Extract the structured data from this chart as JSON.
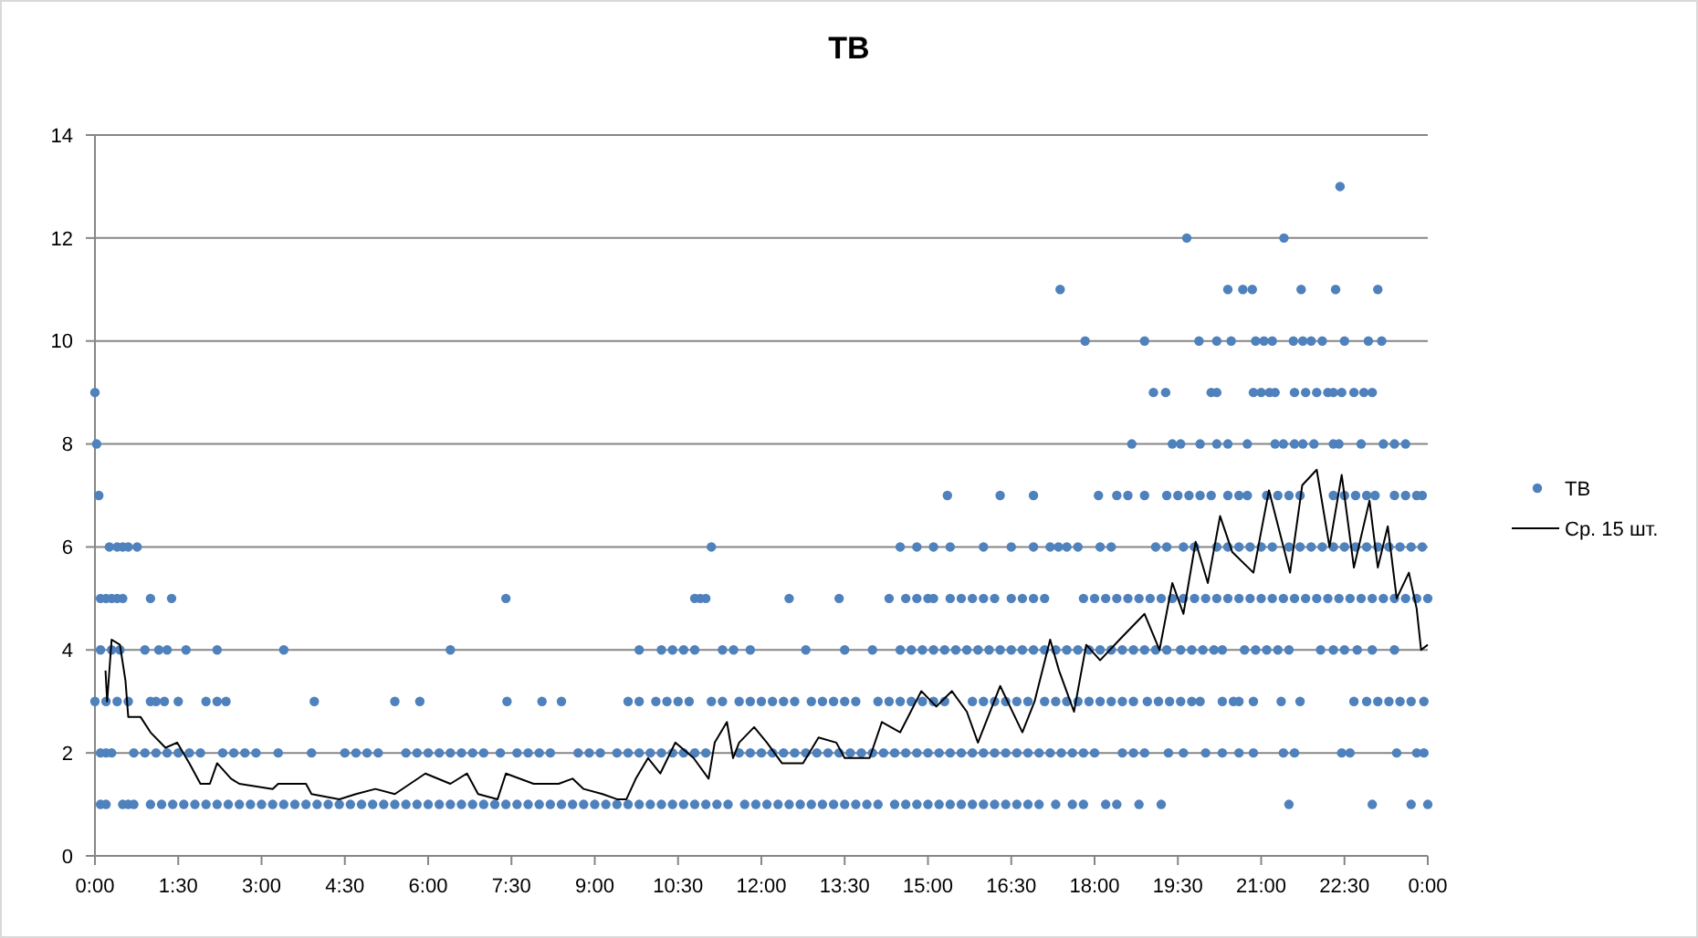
{
  "chart_data": {
    "type": "scatter",
    "title": "ТВ",
    "xlim": [
      0,
      24
    ],
    "ylim": [
      0,
      14
    ],
    "xticks": [
      {
        "value": 0,
        "label": "0:00"
      },
      {
        "value": 1.5,
        "label": "1:30"
      },
      {
        "value": 3,
        "label": "3:00"
      },
      {
        "value": 4.5,
        "label": "4:30"
      },
      {
        "value": 6,
        "label": "6:00"
      },
      {
        "value": 7.5,
        "label": "7:30"
      },
      {
        "value": 9,
        "label": "9:00"
      },
      {
        "value": 10.5,
        "label": "10:30"
      },
      {
        "value": 12,
        "label": "12:00"
      },
      {
        "value": 13.5,
        "label": "13:30"
      },
      {
        "value": 15,
        "label": "15:00"
      },
      {
        "value": 16.5,
        "label": "16:30"
      },
      {
        "value": 18,
        "label": "18:00"
      },
      {
        "value": 19.5,
        "label": "19:30"
      },
      {
        "value": 21,
        "label": "21:00"
      },
      {
        "value": 22.5,
        "label": "22:30"
      },
      {
        "value": 24,
        "label": "0:00"
      }
    ],
    "yticks": [
      0,
      2,
      4,
      6,
      8,
      10,
      12,
      14
    ],
    "grid": "y",
    "legend": "right",
    "marker": "circle",
    "series": [
      {
        "name": "ТВ",
        "color": "#4f81bd",
        "x": [
          0.1,
          0.2,
          0.5,
          0.6,
          0.7,
          1.0,
          1.2,
          1.4,
          1.6,
          1.8,
          2.0,
          2.2,
          2.4,
          2.6,
          2.8,
          3.0,
          3.2,
          3.4,
          3.6,
          3.8,
          4.0,
          4.2,
          4.4,
          4.6,
          4.8,
          5.0,
          5.2,
          5.4,
          5.6,
          5.8,
          6.0,
          6.2,
          6.4,
          6.6,
          6.8,
          7.0,
          7.2,
          7.4,
          7.6,
          7.8,
          8.0,
          8.2,
          8.4,
          8.6,
          8.8,
          9.0,
          9.2,
          9.4,
          9.6,
          9.8,
          10.0,
          10.2,
          10.4,
          10.6,
          10.8,
          11.0,
          11.2,
          11.4,
          11.7,
          11.9,
          12.1,
          12.3,
          12.5,
          12.7,
          12.9,
          13.1,
          13.3,
          13.5,
          13.7,
          13.9,
          14.1,
          14.4,
          14.6,
          14.8,
          15.0,
          15.2,
          15.4,
          15.6,
          15.8,
          16.0,
          16.2,
          16.4,
          16.6,
          16.8,
          17.0,
          17.3,
          17.6,
          17.8,
          18.2,
          18.4,
          18.8,
          19.2,
          21.5,
          23.0,
          23.7,
          24.0,
          0.1,
          0.2,
          0.3,
          0.7,
          0.9,
          1.1,
          1.3,
          1.5,
          1.7,
          1.9,
          2.3,
          2.5,
          2.7,
          2.9,
          3.3,
          3.9,
          4.5,
          4.7,
          4.9,
          5.1,
          5.6,
          5.8,
          6.0,
          6.2,
          6.4,
          6.6,
          6.8,
          7.0,
          7.3,
          7.6,
          7.8,
          8.0,
          8.2,
          8.7,
          8.9,
          9.1,
          9.4,
          9.6,
          9.8,
          10.0,
          10.2,
          10.4,
          10.6,
          10.8,
          11.0,
          11.6,
          11.8,
          12.0,
          12.2,
          12.4,
          12.6,
          12.8,
          13.0,
          13.2,
          13.4,
          13.6,
          13.8,
          14.0,
          14.2,
          14.4,
          14.6,
          14.8,
          15.0,
          15.2,
          15.4,
          15.6,
          15.8,
          16.0,
          16.2,
          16.4,
          16.6,
          16.8,
          17.0,
          17.2,
          17.4,
          17.6,
          17.8,
          18.0,
          18.5,
          18.7,
          18.9,
          19.33,
          19.6,
          20.0,
          20.3,
          20.6,
          20.86,
          21.4,
          21.6,
          22.45,
          22.6,
          23.44,
          23.8,
          23.93,
          0,
          0.2,
          0.4,
          0.6,
          1.0,
          1.1,
          1.25,
          1.5,
          2.0,
          2.2,
          2.36,
          3.95,
          5.4,
          5.85,
          7.42,
          8.05,
          8.4,
          9.6,
          9.8,
          10.1,
          10.3,
          10.5,
          10.7,
          11.1,
          11.3,
          11.6,
          11.8,
          12.0,
          12.2,
          12.4,
          12.6,
          12.9,
          13.1,
          13.3,
          13.5,
          13.7,
          14.1,
          14.3,
          14.5,
          14.7,
          14.9,
          15.1,
          15.3,
          15.8,
          16.0,
          16.2,
          16.4,
          16.6,
          16.8,
          17.1,
          17.3,
          17.5,
          17.7,
          17.9,
          18.1,
          18.3,
          18.5,
          18.7,
          18.95,
          19.15,
          19.35,
          19.55,
          19.75,
          19.9,
          20.3,
          20.5,
          20.6,
          20.86,
          21.36,
          21.7,
          22.67,
          22.9,
          23.1,
          23.3,
          23.5,
          23.7,
          23.93,
          0.1,
          0.3,
          0.45,
          0.9,
          1.15,
          1.3,
          1.64,
          2.2,
          3.4,
          6.4,
          9.8,
          10.2,
          10.4,
          10.6,
          10.8,
          11.3,
          11.5,
          11.8,
          12.8,
          13.5,
          14.0,
          14.5,
          14.7,
          14.9,
          15.1,
          15.3,
          15.5,
          15.7,
          15.9,
          16.1,
          16.3,
          16.5,
          16.7,
          16.9,
          17.1,
          17.3,
          17.5,
          17.7,
          17.9,
          18.1,
          18.3,
          18.5,
          18.7,
          18.9,
          19.1,
          19.3,
          19.55,
          19.75,
          19.95,
          20.15,
          20.3,
          20.7,
          20.9,
          21.1,
          21.3,
          21.5,
          22.07,
          22.3,
          22.5,
          22.73,
          23.0,
          23.4,
          0.1,
          0.2,
          0.3,
          0.4,
          0.5,
          1.0,
          1.38,
          7.4,
          10.8,
          10.9,
          11.0,
          12.5,
          13.4,
          14.3,
          14.6,
          14.8,
          15.0,
          15.1,
          15.4,
          15.6,
          15.8,
          16.0,
          16.2,
          16.5,
          16.7,
          16.9,
          17.1,
          17.8,
          18.0,
          18.2,
          18.4,
          18.6,
          18.8,
          19.0,
          19.2,
          19.4,
          19.6,
          19.8,
          20.0,
          20.2,
          20.4,
          20.6,
          20.8,
          21.0,
          21.2,
          21.4,
          21.6,
          21.8,
          22.0,
          22.2,
          22.4,
          22.6,
          22.8,
          23.0,
          23.2,
          23.4,
          23.6,
          23.8,
          24.0,
          0.26,
          0.4,
          0.5,
          0.6,
          0.76,
          11.1,
          14.5,
          14.8,
          15.1,
          15.4,
          16.0,
          16.5,
          16.9,
          17.2,
          17.35,
          17.5,
          17.7,
          18.1,
          18.3,
          19.1,
          19.3,
          19.6,
          19.8,
          20.2,
          20.4,
          20.6,
          20.8,
          21.0,
          21.2,
          21.5,
          21.7,
          21.9,
          22.1,
          22.3,
          22.5,
          22.7,
          22.9,
          23.1,
          23.3,
          23.5,
          23.7,
          23.9,
          0.07,
          15.35,
          16.3,
          16.9,
          18.07,
          18.4,
          18.6,
          18.9,
          19.3,
          19.5,
          19.7,
          19.9,
          20.1,
          20.4,
          20.6,
          20.75,
          21.1,
          21.3,
          21.5,
          21.7,
          22.3,
          22.5,
          22.7,
          22.9,
          23.05,
          23.4,
          23.6,
          23.8,
          23.9,
          0.03,
          18.67,
          19.4,
          19.55,
          19.9,
          20.2,
          20.4,
          20.75,
          21.25,
          21.4,
          21.6,
          21.75,
          21.95,
          22.3,
          22.4,
          22.8,
          23.2,
          23.4,
          23.6,
          0.0,
          19.06,
          19.28,
          20.1,
          20.2,
          20.86,
          21.0,
          21.15,
          21.25,
          21.6,
          21.8,
          22.0,
          22.2,
          22.3,
          22.45,
          22.67,
          22.85,
          23.0,
          17.83,
          18.9,
          19.88,
          20.2,
          20.46,
          20.9,
          21.05,
          21.2,
          21.58,
          21.75,
          21.9,
          22.1,
          22.5,
          22.93,
          23.17,
          17.38,
          20.4,
          20.67,
          20.84,
          21.72,
          22.34,
          23.1,
          19.66,
          21.41,
          22.42
        ],
        "values": [
          1,
          1,
          1,
          1,
          1,
          1,
          1,
          1,
          1,
          1,
          1,
          1,
          1,
          1,
          1,
          1,
          1,
          1,
          1,
          1,
          1,
          1,
          1,
          1,
          1,
          1,
          1,
          1,
          1,
          1,
          1,
          1,
          1,
          1,
          1,
          1,
          1,
          1,
          1,
          1,
          1,
          1,
          1,
          1,
          1,
          1,
          1,
          1,
          1,
          1,
          1,
          1,
          1,
          1,
          1,
          1,
          1,
          1,
          1,
          1,
          1,
          1,
          1,
          1,
          1,
          1,
          1,
          1,
          1,
          1,
          1,
          1,
          1,
          1,
          1,
          1,
          1,
          1,
          1,
          1,
          1,
          1,
          1,
          1,
          1,
          1,
          1,
          1,
          1,
          1,
          1,
          1,
          1,
          1,
          1,
          1,
          2,
          2,
          2,
          2,
          2,
          2,
          2,
          2,
          2,
          2,
          2,
          2,
          2,
          2,
          2,
          2,
          2,
          2,
          2,
          2,
          2,
          2,
          2,
          2,
          2,
          2,
          2,
          2,
          2,
          2,
          2,
          2,
          2,
          2,
          2,
          2,
          2,
          2,
          2,
          2,
          2,
          2,
          2,
          2,
          2,
          2,
          2,
          2,
          2,
          2,
          2,
          2,
          2,
          2,
          2,
          2,
          2,
          2,
          2,
          2,
          2,
          2,
          2,
          2,
          2,
          2,
          2,
          2,
          2,
          2,
          2,
          2,
          2,
          2,
          2,
          2,
          2,
          2,
          2,
          2,
          2,
          2,
          2,
          2,
          2,
          2,
          2,
          2,
          2,
          2,
          2,
          2,
          2,
          2,
          3,
          3,
          3,
          3,
          3,
          3,
          3,
          3,
          3,
          3,
          3,
          3,
          3,
          3,
          3,
          3,
          3,
          3,
          3,
          3,
          3,
          3,
          3,
          3,
          3,
          3,
          3,
          3,
          3,
          3,
          3,
          3,
          3,
          3,
          3,
          3,
          3,
          3,
          3,
          3,
          3,
          3,
          3,
          3,
          3,
          3,
          3,
          3,
          3,
          3,
          3,
          3,
          3,
          3,
          3,
          3,
          3,
          3,
          3,
          3,
          3,
          3,
          3,
          3,
          3,
          3,
          3,
          3,
          3,
          3,
          3,
          3,
          3,
          3,
          3,
          3,
          3,
          4,
          4,
          4,
          4,
          4,
          4,
          4,
          4,
          4,
          4,
          4,
          4,
          4,
          4,
          4,
          4,
          4,
          4,
          4,
          4,
          4,
          4,
          4,
          4,
          4,
          4,
          4,
          4,
          4,
          4,
          4,
          4,
          4,
          4,
          4,
          4,
          4,
          4,
          4,
          4,
          4,
          4,
          4,
          4,
          4,
          4,
          4,
          4,
          4,
          4,
          4,
          4,
          4,
          4,
          4,
          4,
          4,
          4,
          4,
          4,
          4,
          4,
          5,
          5,
          5,
          5,
          5,
          5,
          5,
          5,
          5,
          5,
          5,
          5,
          5,
          5,
          5,
          5,
          5,
          5,
          5,
          5,
          5,
          5,
          5,
          5,
          5,
          5,
          5,
          5,
          5,
          5,
          5,
          5,
          5,
          5,
          5,
          5,
          5,
          5,
          5,
          5,
          5,
          5,
          5,
          5,
          5,
          5,
          5,
          5,
          5,
          5,
          5,
          5,
          5,
          5,
          5,
          5,
          5,
          5,
          5,
          6,
          6,
          6,
          6,
          6,
          6,
          6,
          6,
          6,
          6,
          6,
          6,
          6,
          6,
          6,
          6,
          6,
          6,
          6,
          6,
          6,
          6,
          6,
          6,
          6,
          6,
          6,
          6,
          6,
          6,
          6,
          6,
          6,
          6,
          6,
          6,
          6,
          6,
          6,
          6,
          6,
          6,
          7,
          7,
          7,
          7,
          7,
          7,
          7,
          7,
          7,
          7,
          7,
          7,
          7,
          7,
          7,
          7,
          7,
          7,
          7,
          7,
          7,
          7,
          7,
          7,
          7,
          7,
          7,
          7,
          7,
          8,
          8,
          8,
          8,
          8,
          8,
          8,
          8,
          8,
          8,
          8,
          8,
          8,
          8,
          8,
          8,
          8,
          8,
          8,
          9,
          9,
          9,
          9,
          9,
          9,
          9,
          9,
          9,
          9,
          9,
          9,
          9,
          9,
          9,
          9,
          9,
          9,
          10,
          10,
          10,
          10,
          10,
          10,
          10,
          10,
          10,
          10,
          10,
          10,
          10,
          10,
          10,
          11,
          11,
          11,
          11,
          11,
          11,
          11,
          12,
          12,
          13
        ]
      },
      {
        "name": "Ср. 15 шт.",
        "type": "line",
        "color": "#000000",
        "marker": "none",
        "line_style": "solid",
        "x": [
          0.19,
          0.22,
          0.3,
          0.45,
          0.55,
          0.6,
          0.82,
          1.0,
          1.27,
          1.48,
          1.7,
          1.9,
          2.07,
          2.2,
          2.45,
          2.6,
          3.2,
          3.3,
          3.8,
          3.9,
          4.4,
          4.7,
          5.05,
          5.4,
          5.95,
          6.4,
          6.7,
          6.9,
          7.25,
          7.4,
          7.9,
          8.35,
          8.6,
          8.8,
          9.14,
          9.4,
          9.57,
          9.74,
          9.96,
          10.18,
          10.45,
          10.78,
          11.05,
          11.16,
          11.38,
          11.49,
          11.6,
          11.87,
          12.1,
          12.37,
          12.75,
          13.03,
          13.35,
          13.5,
          13.95,
          14.17,
          14.5,
          14.88,
          15.15,
          15.43,
          15.7,
          15.9,
          16.3,
          16.7,
          16.92,
          17.2,
          17.36,
          17.63,
          17.85,
          18.1,
          18.45,
          18.9,
          19.17,
          19.4,
          19.6,
          19.82,
          20.04,
          20.26,
          20.48,
          20.86,
          21.14,
          21.52,
          21.74,
          22.0,
          22.23,
          22.45,
          22.67,
          22.95,
          23.1,
          23.28,
          23.44,
          23.66,
          23.8,
          23.88,
          24.0
        ],
        "values": [
          3.6,
          3.0,
          4.2,
          4.1,
          3.4,
          2.7,
          2.7,
          2.4,
          2.1,
          2.2,
          1.8,
          1.4,
          1.4,
          1.8,
          1.5,
          1.4,
          1.3,
          1.4,
          1.4,
          1.2,
          1.1,
          1.2,
          1.3,
          1.2,
          1.6,
          1.4,
          1.6,
          1.2,
          1.1,
          1.6,
          1.4,
          1.4,
          1.5,
          1.3,
          1.2,
          1.1,
          1.1,
          1.5,
          1.9,
          1.6,
          2.2,
          1.9,
          1.5,
          2.2,
          2.6,
          1.9,
          2.2,
          2.5,
          2.2,
          1.8,
          1.8,
          2.3,
          2.2,
          1.9,
          1.9,
          2.6,
          2.4,
          3.2,
          2.9,
          3.2,
          2.8,
          2.2,
          3.3,
          2.4,
          3.0,
          4.2,
          3.6,
          2.8,
          4.1,
          3.8,
          4.2,
          4.7,
          4.0,
          5.3,
          4.7,
          6.1,
          5.3,
          6.6,
          5.9,
          5.5,
          7.1,
          5.5,
          7.2,
          7.5,
          6.0,
          7.4,
          5.6,
          6.9,
          5.6,
          6.4,
          5.0,
          5.5,
          4.8,
          4.0,
          4.1
        ]
      }
    ]
  }
}
